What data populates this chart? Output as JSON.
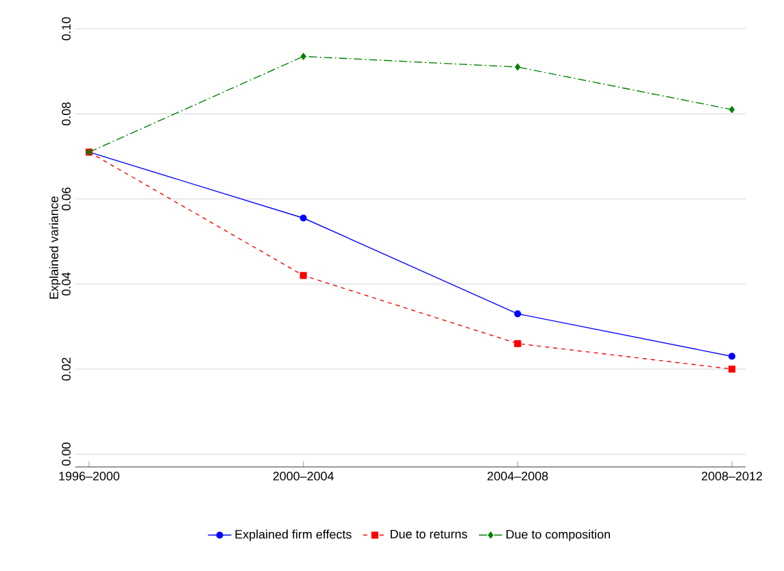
{
  "chart_data": {
    "type": "line",
    "ylabel": "Explained variance",
    "categories": [
      "1996–2000",
      "2000–2004",
      "2004–2008",
      "2008–2012"
    ],
    "series": [
      {
        "name": "Explained firm effects",
        "color": "#0000ff",
        "values": [
          0.071,
          0.0555,
          0.033,
          0.023
        ],
        "marker": "circle",
        "line_style": "solid"
      },
      {
        "name": "Due to returns",
        "color": "#ff0000",
        "values": [
          0.071,
          0.042,
          0.026,
          0.02
        ],
        "marker": "square",
        "line_style": "dashed"
      },
      {
        "name": "Due to composition",
        "color": "#008000",
        "values": [
          0.071,
          0.0935,
          0.091,
          0.081
        ],
        "marker": "diamond",
        "line_style": "dashdot"
      }
    ],
    "ylim": [
      -0.003,
      0.1
    ],
    "yticks": [
      {
        "value": 0,
        "label": "0.00"
      },
      {
        "value": 0.02,
        "label": "0.02"
      },
      {
        "value": 0.04,
        "label": "0.04"
      },
      {
        "value": 0.06,
        "label": "0.06"
      },
      {
        "value": 0.08,
        "label": "0.08"
      },
      {
        "value": 0.1,
        "label": "0.10"
      }
    ],
    "grid": "y",
    "legend": "bottom"
  }
}
